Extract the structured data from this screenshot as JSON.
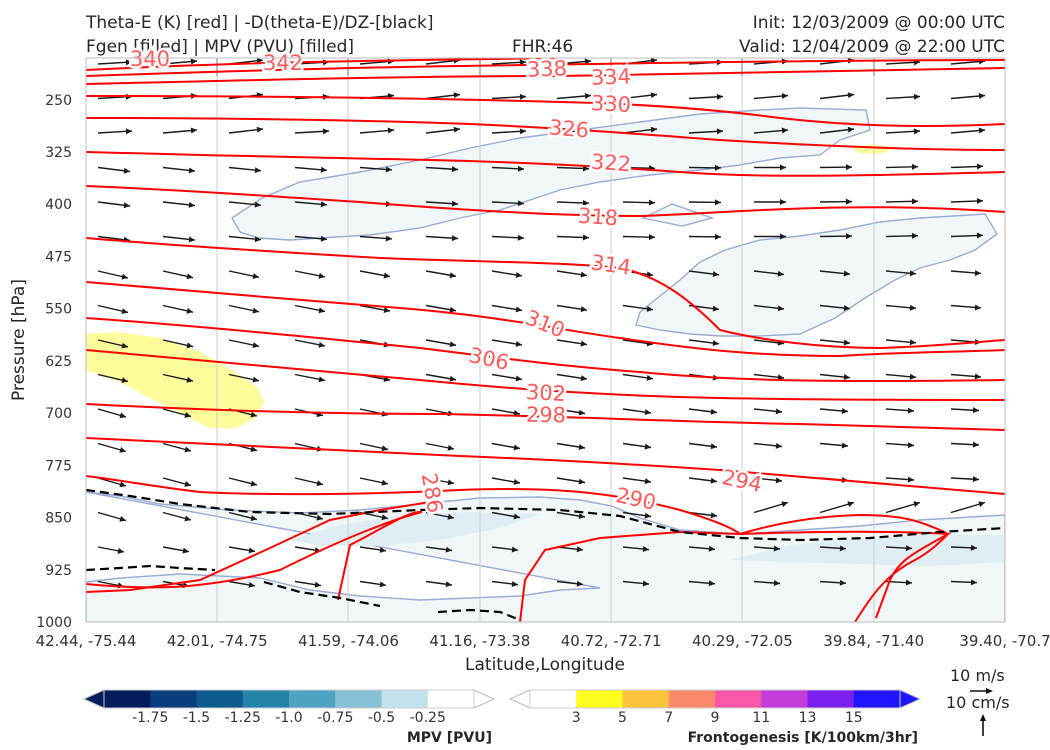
{
  "header": {
    "left_line1": "Theta-E (K) [red] | -D(theta-E)/DZ-[black]",
    "left_line2": "Fgen [filled] | MPV (PVU) [filled]",
    "center": "FHR:46",
    "right_line1": "Init: 12/03/2009 @ 00:00 UTC",
    "right_line2": "Valid: 12/04/2009 @ 22:00 UTC"
  },
  "chart_data": {
    "type": "contour",
    "xlabel": "Latitude,Longitude",
    "ylabel": "Pressure [hPa]",
    "x_ticks": [
      "42.44, -75.44",
      "42.01, -74.75",
      "41.59, -74.06",
      "41.16, -73.38",
      "40.72, -72.71",
      "40.29, -72.05",
      "39.84, -71.40",
      "39.40, -70.7"
    ],
    "y_ticks": [
      250,
      325,
      400,
      475,
      550,
      625,
      700,
      775,
      850,
      925,
      1000
    ],
    "ylim": [
      1000,
      190
    ],
    "y_inverted": true,
    "grid": true,
    "theta_e_contours": {
      "color": "#ff0000",
      "label_color": "#ff5a5a",
      "levels": [
        338,
        334,
        330,
        326,
        322,
        318,
        314,
        310,
        306,
        302,
        298,
        294,
        290,
        286
      ],
      "partial_labels": [
        "340",
        "342"
      ]
    },
    "stability_contour": {
      "color": "#000000",
      "style": "dashed",
      "value": 0
    },
    "wind_vectors": {
      "color": "#1a1a1a",
      "note": "in-plane circulation"
    },
    "mpv_colorbar": {
      "label": "MPV [PVU]",
      "ticks": [
        "-1.75",
        "-1.5",
        "-1.25",
        "-1.0",
        "-0.75",
        "-0.5",
        "-0.25"
      ],
      "colors": [
        "#041c5c",
        "#083e7c",
        "#0d5a8f",
        "#2484a8",
        "#4ea3c2",
        "#86c1d6",
        "#c2e1ea",
        "#ffffff"
      ]
    },
    "fgen_colorbar": {
      "label": "Frontogenesis [K/100km/3hr]",
      "ticks": [
        "3",
        "5",
        "7",
        "9",
        "11",
        "13",
        "15"
      ],
      "colors": [
        "#ffffff",
        "#ffff1e",
        "#fbc23e",
        "#fa8a6a",
        "#f757a6",
        "#c43bdc",
        "#7b20f2",
        "#1f16ff"
      ]
    },
    "reference_vectors": {
      "horizontal": "10 m/s",
      "vertical": "10 cm/s"
    }
  }
}
